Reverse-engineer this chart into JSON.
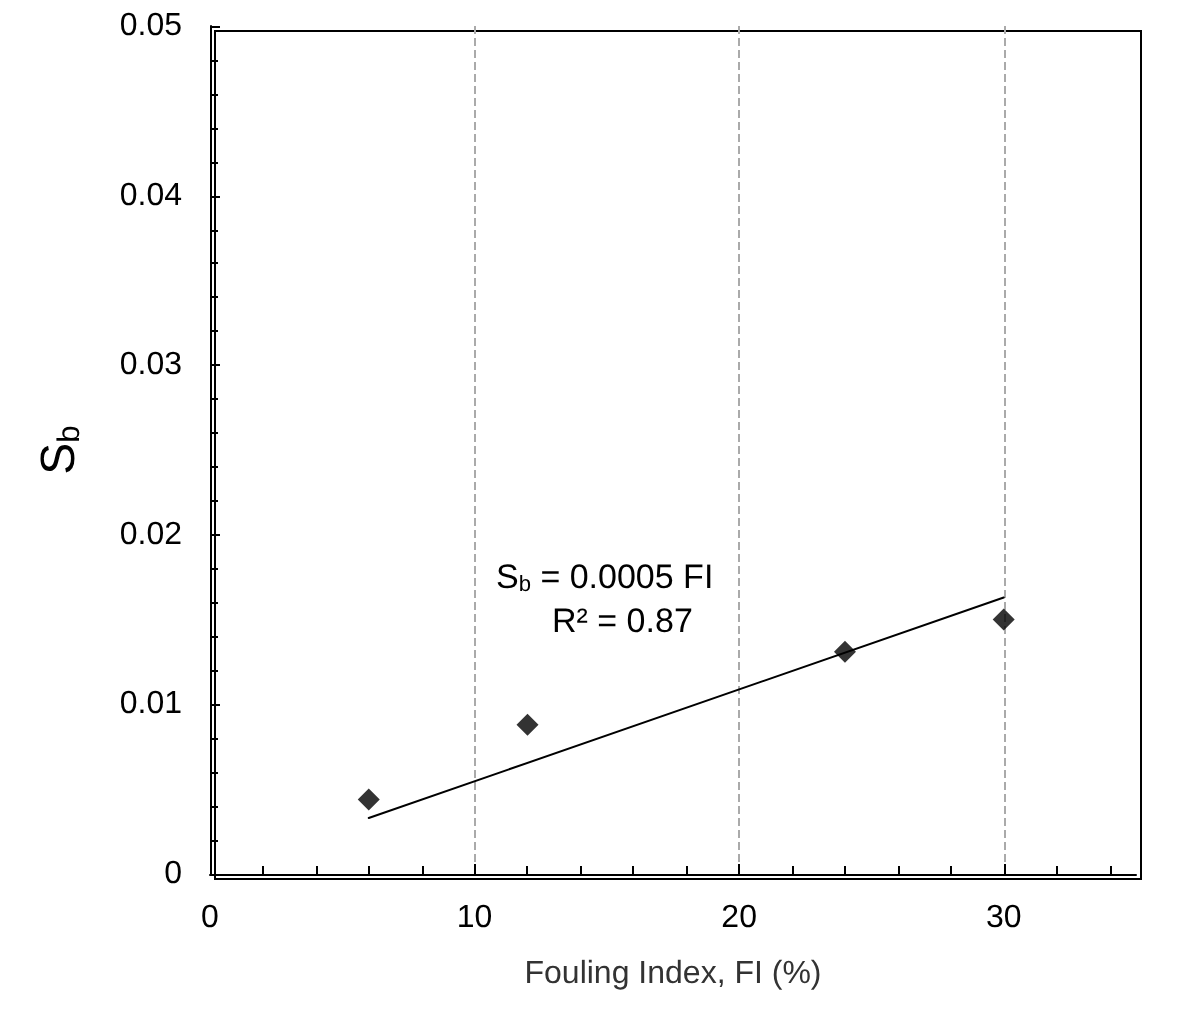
{
  "chart_data": {
    "type": "scatter",
    "xlabel": "Fouling Index, FI (%)",
    "ylabel": "S$_{b}$",
    "x": [
      6,
      12,
      24,
      30
    ],
    "series": [
      {
        "color": "#000000",
        "values": [
          0.0044,
          0.0088,
          0.0131,
          0.015
        ],
        "marker": "diamond"
      },
      {
        "type": "line",
        "color": "#000000",
        "x": [
          6,
          30
        ],
        "values": [
          0.0033,
          0.0163
        ],
        "marker": "none",
        "line_style": "solid"
      }
    ],
    "xlim": [
      0,
      35
    ],
    "xticks": [
      0,
      10,
      20,
      30
    ],
    "ylim": [
      0,
      0.05
    ],
    "yticks": [
      0,
      0.01,
      0.02,
      0.03,
      0.04,
      0.05
    ],
    "grid": "x",
    "annotations": [
      "S$_{b}$ = 0.0005 FI",
      "R² = 0.87"
    ]
  }
}
